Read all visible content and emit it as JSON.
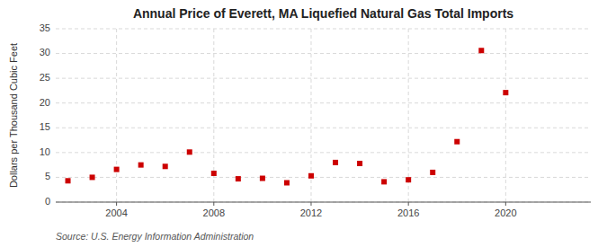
{
  "chart_data": {
    "type": "scatter",
    "title": "Annual Price of Everett, MA Liquefied Natural Gas Total Imports",
    "y_label": "Dollars per Thousand Cubic Feet",
    "annotation": "Source: U.S. Energy Information Administration",
    "x": [
      2002,
      2003,
      2004,
      2005,
      2006,
      2007,
      2008,
      2009,
      2010,
      2011,
      2012,
      2013,
      2014,
      2015,
      2016,
      2017,
      2018,
      2019,
      2020
    ],
    "values": [
      4.3,
      5.0,
      6.6,
      7.5,
      7.2,
      10.1,
      5.8,
      4.7,
      4.8,
      3.9,
      5.3,
      8.0,
      7.8,
      4.1,
      4.5,
      6.0,
      12.2,
      30.6,
      22.1
    ],
    "color": "#cc0000",
    "marker": "square",
    "xlim": [
      2001.5,
      2023.5
    ],
    "xticks": [
      2004,
      2008,
      2012,
      2016,
      2020
    ],
    "ylim": [
      0,
      35
    ],
    "yticks": [
      0,
      5,
      10,
      15,
      20,
      25,
      30,
      35
    ],
    "grid": true
  }
}
